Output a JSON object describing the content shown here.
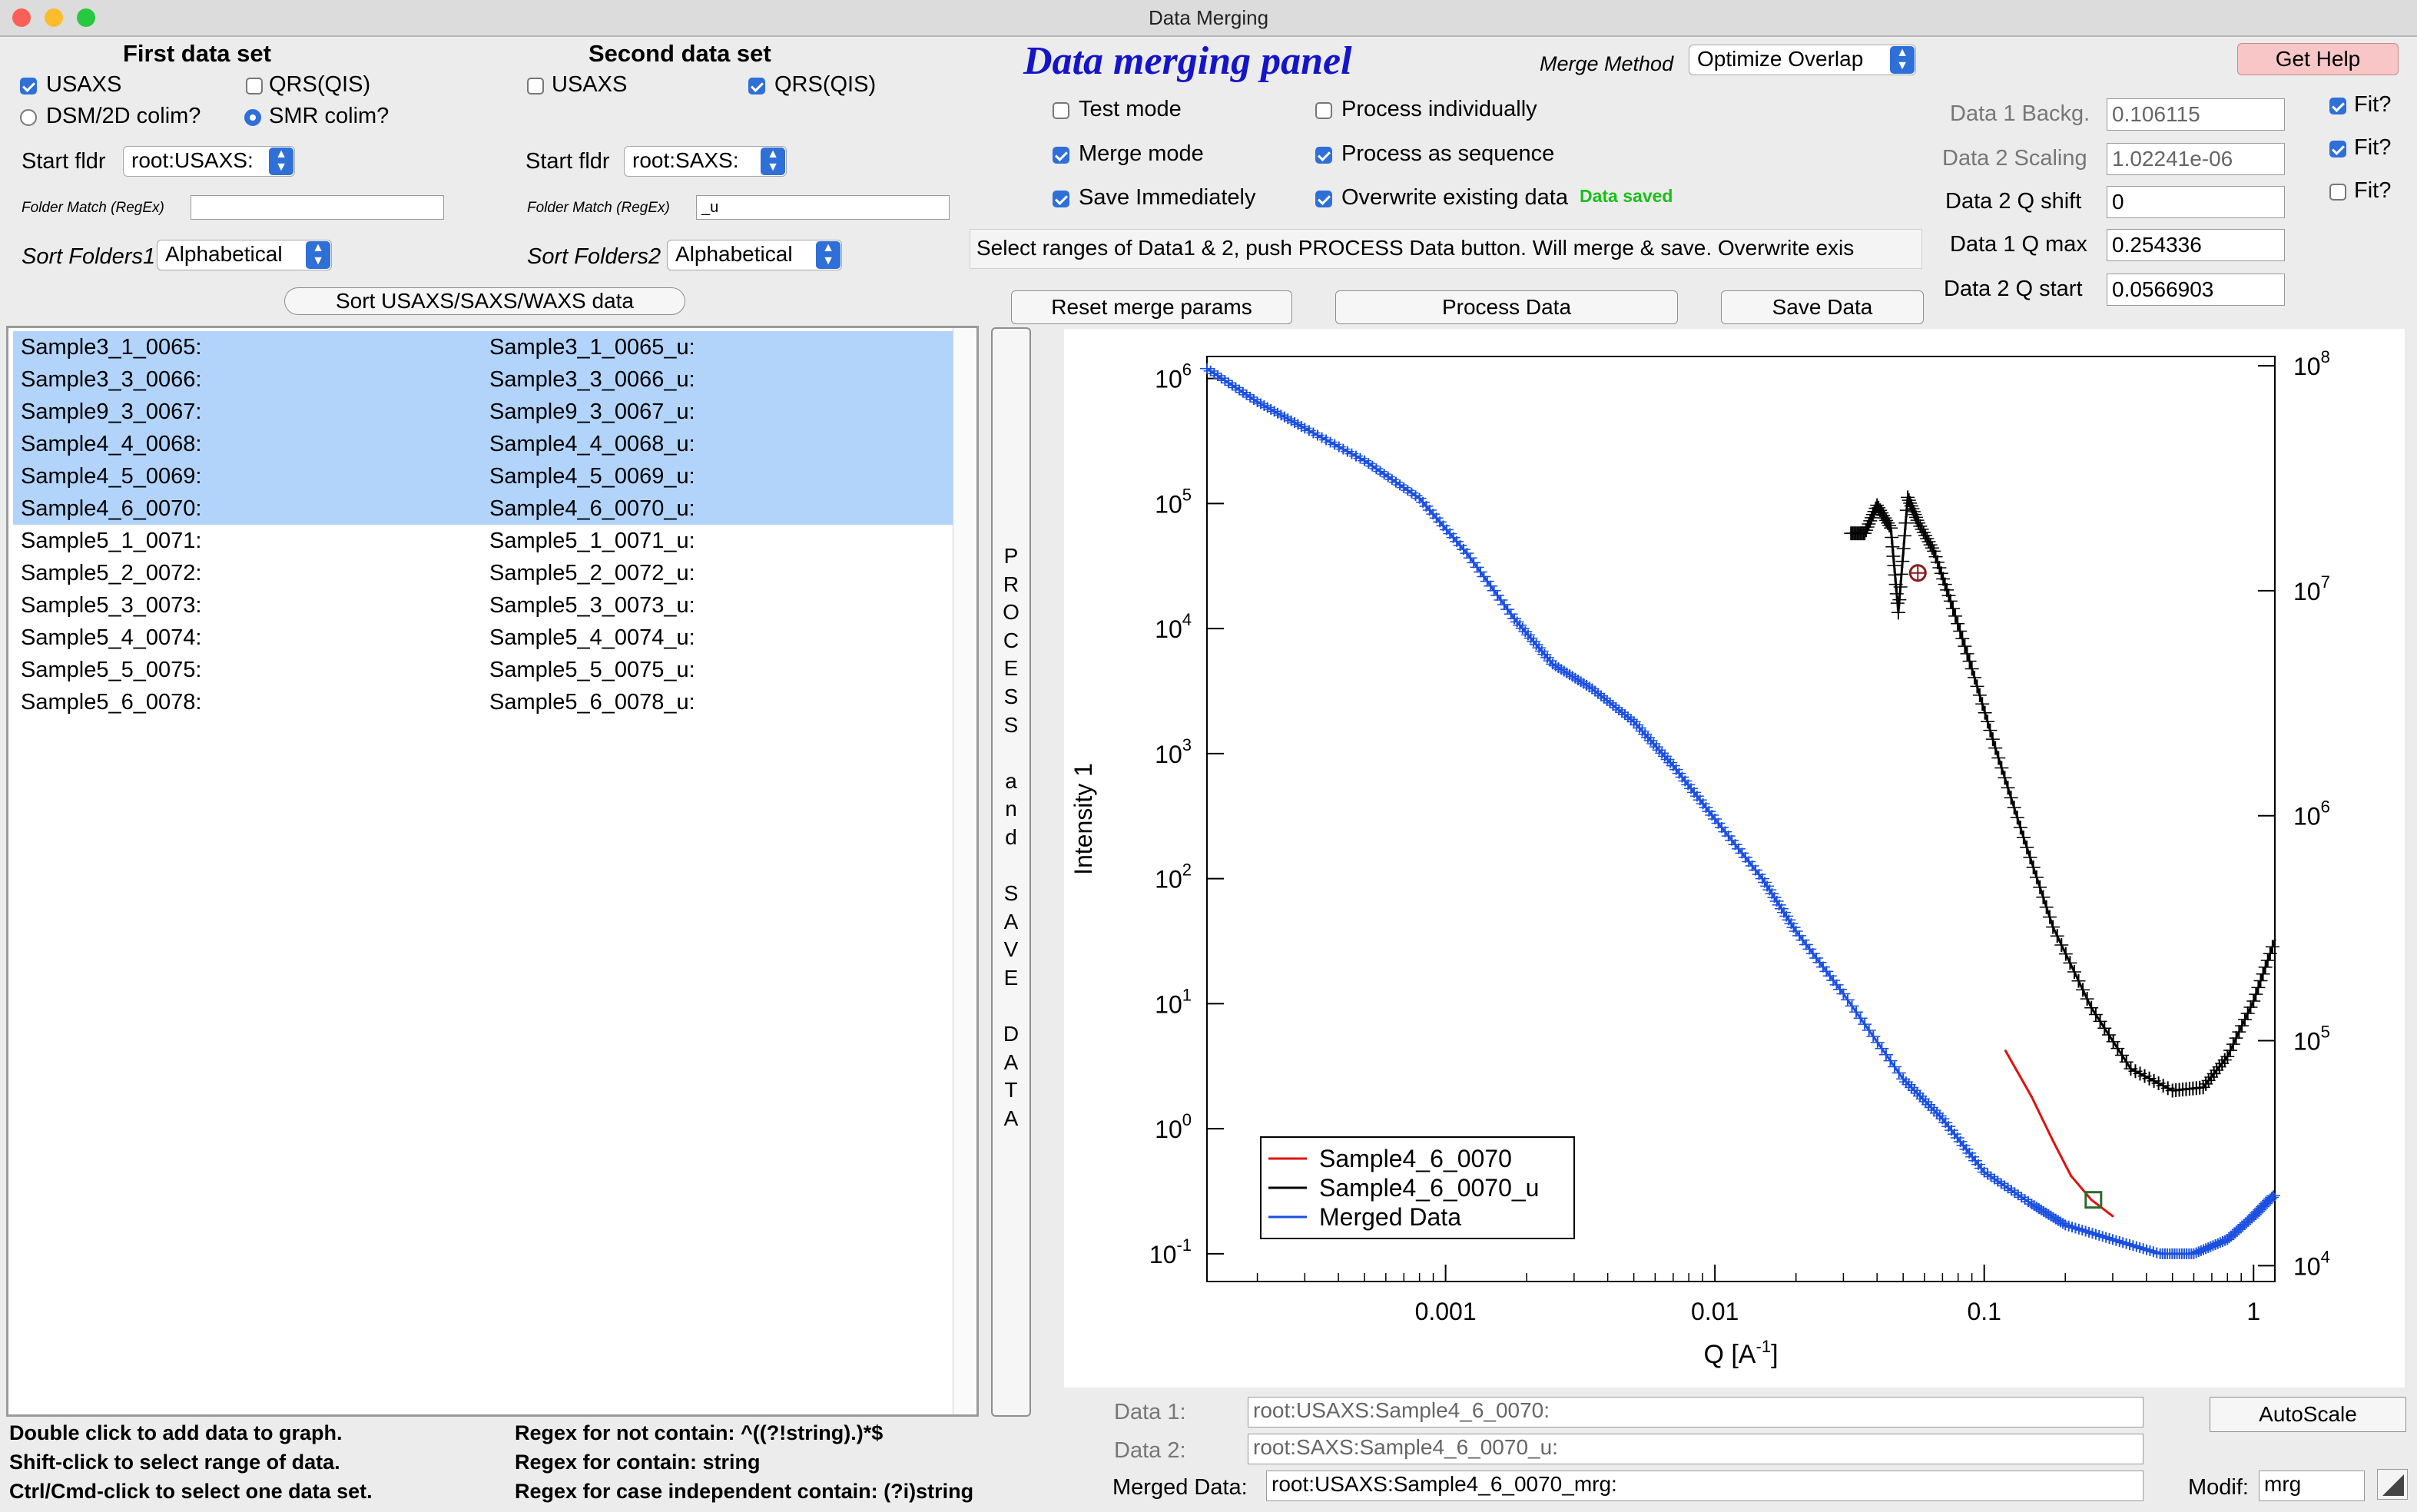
{
  "window": {
    "title": "Data Merging"
  },
  "first_set": {
    "header": "First data set",
    "usaxs": "USAXS",
    "qrs": "QRS(QIS)",
    "dsm": "DSM/2D colim?",
    "smr": "SMR colim?",
    "start_label": "Start fldr",
    "start_value": "root:USAXS:",
    "folder_match_label": "Folder Match (RegEx)",
    "folder_match_value": "",
    "sort_label": "Sort Folders1",
    "sort_value": "Alphabetical"
  },
  "second_set": {
    "header": "Second data set",
    "usaxs": "USAXS",
    "qrs": "QRS(QIS)",
    "start_label": "Start fldr",
    "start_value": "root:SAXS:",
    "folder_match_label": "Folder Match (RegEx)",
    "folder_match_value": "_u",
    "sort_label": "Sort Folders2",
    "sort_value": "Alphabetical"
  },
  "sort_button": "Sort USAXS/SAXS/WAXS data",
  "panel": {
    "title": "Data merging  panel",
    "merge_method_label": "Merge Method",
    "merge_method_value": "Optimize Overlap",
    "help_button": "Get Help",
    "test_mode": "Test mode",
    "process_individually": "Process individually",
    "merge_mode": "Merge mode",
    "process_sequence": "Process as sequence",
    "save_immediately": "Save Immediately",
    "overwrite": "Overwrite existing data",
    "saved_status": "Data saved",
    "instruction": "Select ranges of Data1 & 2, push PROCESS Data button. Will merge & save. Overwrite exis",
    "reset_button": "Reset merge params",
    "process_button": "Process Data",
    "save_button": "Save Data"
  },
  "params": {
    "backg_label": "Data 1 Backg.",
    "backg_value": "0.106115",
    "scaling_label": "Data 2 Scaling",
    "scaling_value": "1.02241e-06",
    "qshift_label": "Data 2 Q shift",
    "qshift_value": "0",
    "qmax_label": "Data 1 Q max",
    "qmax_value": "0.254336",
    "qstart_label": "Data 2 Q start",
    "qstart_value": "0.0566903",
    "fit_label": "Fit?"
  },
  "list": {
    "rows": [
      {
        "a": "Sample3_1_0065:",
        "b": "Sample3_1_0065_u:",
        "selected": true
      },
      {
        "a": "Sample3_3_0066:",
        "b": "Sample3_3_0066_u:",
        "selected": true
      },
      {
        "a": "Sample9_3_0067:",
        "b": "Sample9_3_0067_u:",
        "selected": true
      },
      {
        "a": "Sample4_4_0068:",
        "b": "Sample4_4_0068_u:",
        "selected": true
      },
      {
        "a": "Sample4_5_0069:",
        "b": "Sample4_5_0069_u:",
        "selected": true
      },
      {
        "a": "Sample4_6_0070:",
        "b": "Sample4_6_0070_u:",
        "selected": true
      },
      {
        "a": "Sample5_1_0071:",
        "b": "Sample5_1_0071_u:",
        "selected": false
      },
      {
        "a": "Sample5_2_0072:",
        "b": "Sample5_2_0072_u:",
        "selected": false
      },
      {
        "a": "Sample5_3_0073:",
        "b": "Sample5_3_0073_u:",
        "selected": false
      },
      {
        "a": "Sample5_4_0074:",
        "b": "Sample5_4_0074_u:",
        "selected": false
      },
      {
        "a": "Sample5_5_0075:",
        "b": "Sample5_5_0075_u:",
        "selected": false
      },
      {
        "a": "Sample5_6_0078:",
        "b": "Sample5_6_0078_u:",
        "selected": false
      }
    ]
  },
  "process_save_button": [
    "P",
    "R",
    "O",
    "C",
    "E",
    "S",
    "S",
    "",
    "a",
    "n",
    "d",
    "",
    "S",
    "A",
    "V",
    "E",
    "",
    "D",
    "A",
    "T",
    "A"
  ],
  "help_text": {
    "l1": "Double click to add data to graph.",
    "l2": "Shift-click to select range of data.",
    "l3": "Ctrl/Cmd-click to select one data set.",
    "r1": "Regex for not contain: ^((?!string).)*$",
    "r2": "Regex for contain:  string",
    "r3": "Regex for case independent contain:  (?i)string"
  },
  "bottom": {
    "data1_label": "Data 1:",
    "data1_value": "root:USAXS:Sample4_6_0070:",
    "data2_label": "Data 2:",
    "data2_value": "root:SAXS:Sample4_6_0070_u:",
    "merged_label": "Merged Data:",
    "merged_value": "root:USAXS:Sample4_6_0070_mrg:",
    "autoscale_button": "AutoScale",
    "modif_label": "Modif:",
    "modif_value": "mrg"
  },
  "chart_data": {
    "type": "line",
    "xlabel": "Q [A",
    "xlabel_sup": "-1",
    "xlabel_end": "]",
    "ylabel": "Intensity 1",
    "xscale": "log",
    "yscale": "log",
    "xlim": [
      0.00013,
      1.2
    ],
    "ylim_left": [
      0.06,
      1500000
    ],
    "ylim_right": [
      8500,
      110000000
    ],
    "x_ticks": [
      {
        "v": 0.001,
        "label": "0.001"
      },
      {
        "v": 0.01,
        "label": "0.01"
      },
      {
        "v": 0.1,
        "label": "0.1"
      },
      {
        "v": 1,
        "label": "1"
      }
    ],
    "y_left_ticks": [
      {
        "v": 1000000,
        "base": "10",
        "exp": "6"
      },
      {
        "v": 100000,
        "base": "10",
        "exp": "5"
      },
      {
        "v": 10000,
        "base": "10",
        "exp": "4"
      },
      {
        "v": 1000,
        "base": "10",
        "exp": "3"
      },
      {
        "v": 100,
        "base": "10",
        "exp": "2"
      },
      {
        "v": 10,
        "base": "10",
        "exp": "1"
      },
      {
        "v": 1,
        "base": "10",
        "exp": "0"
      },
      {
        "v": 0.1,
        "base": "10",
        "exp": "-1"
      }
    ],
    "y_right_ticks": [
      {
        "v": 100000000,
        "base": "10",
        "exp": "8"
      },
      {
        "v": 10000000,
        "base": "10",
        "exp": "7"
      },
      {
        "v": 1000000,
        "base": "10",
        "exp": "6"
      },
      {
        "v": 100000,
        "base": "10",
        "exp": "5"
      },
      {
        "v": 10000,
        "base": "10",
        "exp": "4"
      }
    ],
    "legend_position": "bottom-left",
    "series": [
      {
        "name": "Sample4_6_0070",
        "color": "#e01010",
        "axis": "left",
        "x": [
          0.12,
          0.15,
          0.18,
          0.21,
          0.25,
          0.3
        ],
        "y": [
          4.2,
          1.8,
          0.8,
          0.42,
          0.27,
          0.2
        ]
      },
      {
        "name": "Sample4_6_0070_u",
        "color": "#000000",
        "axis": "right",
        "errorbars": true,
        "x": [
          0.032,
          0.036,
          0.04,
          0.045,
          0.048,
          0.052,
          0.057,
          0.065,
          0.075,
          0.09,
          0.11,
          0.14,
          0.18,
          0.25,
          0.35,
          0.5,
          0.65,
          0.8,
          1.0,
          1.2
        ],
        "y": [
          18000000,
          18000000,
          24000000,
          19000000,
          8000000,
          26000000,
          20000000,
          15000000,
          9000000,
          4500000,
          2000000,
          800000,
          320000,
          140000,
          75000,
          60000,
          62000,
          85000,
          150000,
          280000
        ]
      },
      {
        "name": "Merged Data",
        "color": "#1a4fe0",
        "axis": "left",
        "errorbars": true,
        "x": [
          0.00013,
          0.0002,
          0.0003,
          0.0005,
          0.0008,
          0.0012,
          0.0018,
          0.0025,
          0.0035,
          0.005,
          0.007,
          0.01,
          0.015,
          0.02,
          0.03,
          0.05,
          0.07,
          0.1,
          0.15,
          0.2,
          0.3,
          0.45,
          0.6,
          0.8,
          1.0,
          1.2
        ],
        "y": [
          1200000,
          650000,
          400000,
          220000,
          110000,
          40000,
          12000,
          5200,
          3300,
          1800,
          800,
          300,
          100,
          38,
          12,
          2.5,
          1.2,
          0.45,
          0.25,
          0.17,
          0.13,
          0.1,
          0.1,
          0.13,
          0.2,
          0.3
        ]
      }
    ]
  }
}
